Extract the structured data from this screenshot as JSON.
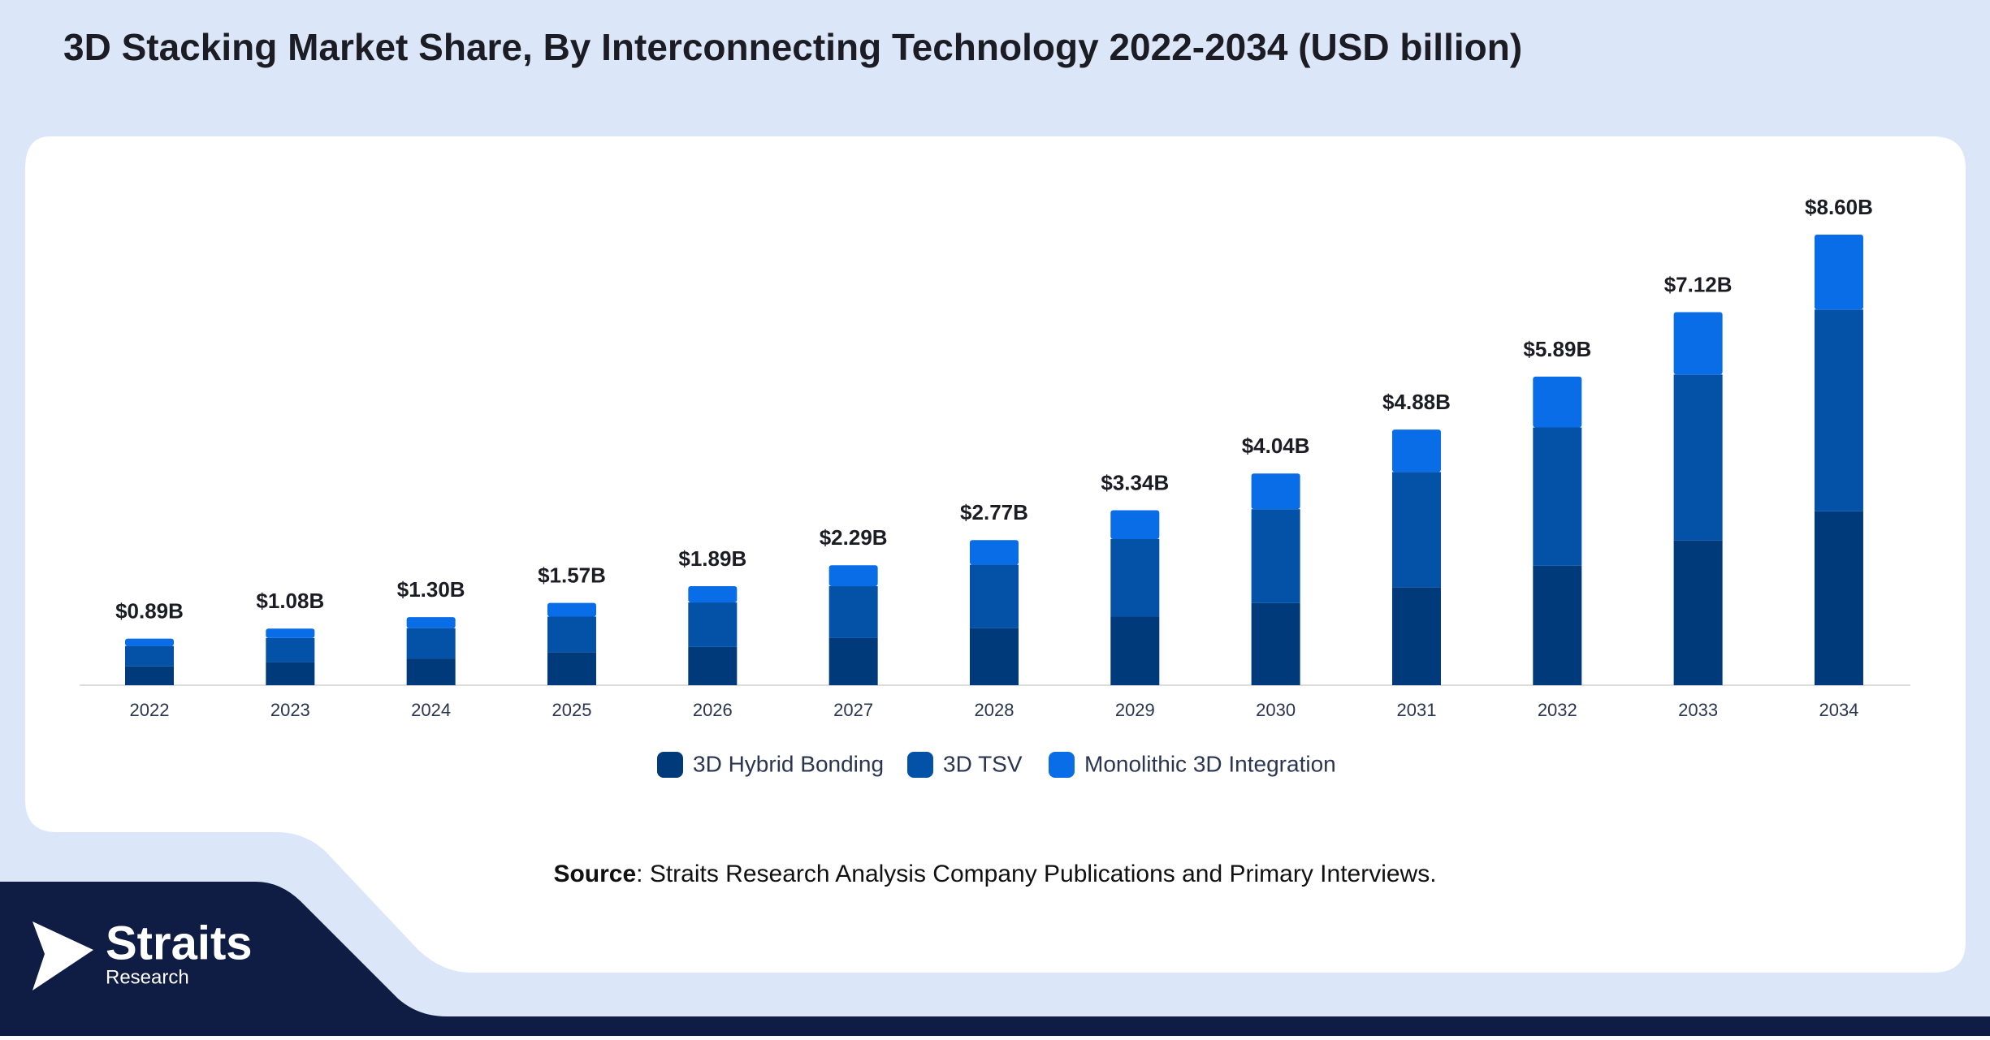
{
  "chart_data": {
    "type": "stacked-bar",
    "title": "3D Stacking Market Share, By Interconnecting Technology 2022-2034 (USD billion)",
    "categories": [
      "2022",
      "2023",
      "2024",
      "2025",
      "2026",
      "2027",
      "2028",
      "2029",
      "2030",
      "2031",
      "2032",
      "2033",
      "2034"
    ],
    "series": [
      {
        "name": "3D Hybrid Bonding",
        "color": "#003a7a",
        "values": [
          0.36,
          0.44,
          0.51,
          0.63,
          0.73,
          0.9,
          1.09,
          1.31,
          1.57,
          1.87,
          2.28,
          2.76,
          3.32
        ]
      },
      {
        "name": "3D TSV",
        "color": "#0452a8",
        "values": [
          0.39,
          0.46,
          0.58,
          0.68,
          0.85,
          0.99,
          1.21,
          1.48,
          1.79,
          2.2,
          2.64,
          3.17,
          3.85
        ]
      },
      {
        "name": "Monolithic 3D Integration",
        "color": "#0a6de8",
        "values": [
          0.14,
          0.18,
          0.21,
          0.26,
          0.31,
          0.4,
          0.47,
          0.55,
          0.68,
          0.81,
          0.97,
          1.19,
          1.43
        ]
      }
    ],
    "totals": {
      "values": [
        0.89,
        1.08,
        1.3,
        1.57,
        1.89,
        2.29,
        2.77,
        3.34,
        4.04,
        4.88,
        5.89,
        7.12,
        8.6
      ],
      "value_labels": [
        "$0.89B",
        "$1.08B",
        "$1.30B",
        "$1.57B",
        "$1.89B",
        "$2.29B",
        "$2.77B",
        "$3.34B",
        "$4.04B",
        "$4.88B",
        "$5.89B",
        "$7.12B",
        "$8.60B"
      ]
    },
    "legend": "bottom",
    "source": {
      "label": "Source",
      "text": ": Straits Research Analysis Company Publications and Primary Interviews."
    }
  },
  "logo": {
    "name": "Straits",
    "tagline": "Research"
  }
}
